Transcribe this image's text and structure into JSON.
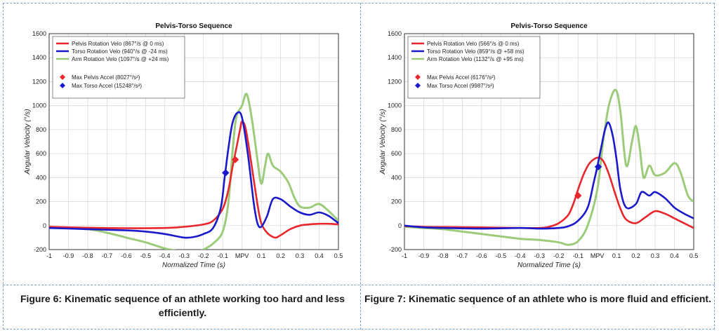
{
  "captions": {
    "left": "Figure 6: Kinematic sequence of an athlete working too hard and less efficiently.",
    "right": "Figure 7: Kinematic sequence of an athlete who is more fluid and efficient."
  },
  "colors": {
    "pelvis": "#e8262b",
    "torso": "#1a1acc",
    "arm": "#9ccc7a"
  },
  "chart_data": [
    {
      "type": "line",
      "title": "Pelvis-Torso Sequence",
      "xlabel": "Normalized Time (s)",
      "ylabel": "Angular Velocity (°/s)",
      "xlim": [
        -1,
        0.5
      ],
      "ylim": [
        -200,
        1600
      ],
      "xticks": [
        "-1",
        "-0.9",
        "-0.8",
        "-0.7",
        "-0.6",
        "-0.5",
        "-0.4",
        "-0.3",
        "-0.2",
        "-0.1",
        "MPV",
        "0.1",
        "0.2",
        "0.3",
        "0.4",
        "0.5"
      ],
      "yticks": [
        "-200",
        "0",
        "200",
        "400",
        "600",
        "800",
        "1000",
        "1200",
        "1400",
        "1600"
      ],
      "grid": true,
      "legend_position": "top-left",
      "series": [
        {
          "name": "Pelvis Rotation Velo",
          "legend_label": "Pelvis Rotation Velo  (867°/s @ 0 ms)",
          "color_key": "pelvis",
          "points": [
            [
              -1,
              -10
            ],
            [
              -0.8,
              -18
            ],
            [
              -0.6,
              -22
            ],
            [
              -0.4,
              -20
            ],
            [
              -0.3,
              -10
            ],
            [
              -0.2,
              10
            ],
            [
              -0.15,
              40
            ],
            [
              -0.1,
              140
            ],
            [
              -0.07,
              300
            ],
            [
              -0.05,
              480
            ],
            [
              -0.03,
              640
            ],
            [
              -0.01,
              800
            ],
            [
              0,
              867
            ],
            [
              0.02,
              800
            ],
            [
              0.05,
              500
            ],
            [
              0.08,
              180
            ],
            [
              0.1,
              20
            ],
            [
              0.13,
              -60
            ],
            [
              0.17,
              -100
            ],
            [
              0.2,
              -80
            ],
            [
              0.25,
              -30
            ],
            [
              0.3,
              0
            ],
            [
              0.35,
              10
            ],
            [
              0.4,
              15
            ],
            [
              0.45,
              15
            ],
            [
              0.5,
              10
            ]
          ]
        },
        {
          "name": "Torso Rotation Velo",
          "legend_label": "Torso Rotation Velo  (940°/s @ -24 ms)",
          "color_key": "torso",
          "points": [
            [
              -1,
              -20
            ],
            [
              -0.8,
              -30
            ],
            [
              -0.6,
              -40
            ],
            [
              -0.5,
              -50
            ],
            [
              -0.4,
              -70
            ],
            [
              -0.3,
              -100
            ],
            [
              -0.25,
              -95
            ],
            [
              -0.2,
              -70
            ],
            [
              -0.15,
              -20
            ],
            [
              -0.11,
              150
            ],
            [
              -0.09,
              400
            ],
            [
              -0.07,
              650
            ],
            [
              -0.05,
              850
            ],
            [
              -0.024,
              940
            ],
            [
              0,
              900
            ],
            [
              0.03,
              600
            ],
            [
              0.06,
              200
            ],
            [
              0.08,
              20
            ],
            [
              0.1,
              -10
            ],
            [
              0.13,
              80
            ],
            [
              0.16,
              220
            ],
            [
              0.2,
              220
            ],
            [
              0.25,
              160
            ],
            [
              0.3,
              110
            ],
            [
              0.35,
              90
            ],
            [
              0.4,
              110
            ],
            [
              0.45,
              80
            ],
            [
              0.5,
              20
            ]
          ]
        },
        {
          "name": "Arm Rotation Velo",
          "legend_label": "Arm Rotation Velo  (1097°/s @ +24 ms)",
          "color_key": "arm",
          "points": [
            [
              -1,
              -10
            ],
            [
              -0.8,
              -30
            ],
            [
              -0.7,
              -60
            ],
            [
              -0.6,
              -100
            ],
            [
              -0.5,
              -140
            ],
            [
              -0.4,
              -190
            ],
            [
              -0.3,
              -220
            ],
            [
              -0.25,
              -230
            ],
            [
              -0.2,
              -200
            ],
            [
              -0.15,
              -150
            ],
            [
              -0.1,
              -50
            ],
            [
              -0.07,
              200
            ],
            [
              -0.05,
              600
            ],
            [
              -0.03,
              900
            ],
            [
              0,
              1000
            ],
            [
              0.024,
              1097
            ],
            [
              0.05,
              900
            ],
            [
              0.08,
              550
            ],
            [
              0.1,
              350
            ],
            [
              0.12,
              500
            ],
            [
              0.135,
              600
            ],
            [
              0.16,
              500
            ],
            [
              0.2,
              450
            ],
            [
              0.24,
              360
            ],
            [
              0.27,
              240
            ],
            [
              0.3,
              160
            ],
            [
              0.35,
              150
            ],
            [
              0.4,
              180
            ],
            [
              0.45,
              120
            ],
            [
              0.5,
              40
            ]
          ]
        }
      ],
      "markers": [
        {
          "name": "Max Pelvis Accel",
          "legend_label": "Max Pelvis Accel  (8027°/s²)",
          "color_key": "pelvis",
          "x": -0.035,
          "y": 550
        },
        {
          "name": "Max Torso Accel",
          "legend_label": "Max Torso Accel  (15248°/s²)",
          "color_key": "torso",
          "x": -0.085,
          "y": 440
        }
      ]
    },
    {
      "type": "line",
      "title": "Pelvis-Torso Sequence",
      "xlabel": "Normalized Time (s)",
      "ylabel": "Angular Velocity (°/s)",
      "xlim": [
        -1,
        0.5
      ],
      "ylim": [
        -200,
        1600
      ],
      "xticks": [
        "-1",
        "-0.9",
        "-0.8",
        "-0.7",
        "-0.6",
        "-0.5",
        "-0.4",
        "-0.3",
        "-0.2",
        "-0.1",
        "MPV",
        "0.1",
        "0.2",
        "0.3",
        "0.4",
        "0.5"
      ],
      "yticks": [
        "-200",
        "0",
        "200",
        "400",
        "600",
        "800",
        "1000",
        "1200",
        "1400",
        "1600"
      ],
      "grid": true,
      "legend_position": "top-left",
      "series": [
        {
          "name": "Pelvis Rotation Velo",
          "legend_label": "Pelvis Rotation Velo  (566°/s @ 0 ms)",
          "color_key": "pelvis",
          "points": [
            [
              -1,
              -5
            ],
            [
              -0.9,
              -10
            ],
            [
              -0.8,
              -12
            ],
            [
              -0.6,
              -15
            ],
            [
              -0.4,
              -20
            ],
            [
              -0.3,
              -20
            ],
            [
              -0.25,
              -10
            ],
            [
              -0.2,
              20
            ],
            [
              -0.15,
              90
            ],
            [
              -0.12,
              200
            ],
            [
              -0.1,
              300
            ],
            [
              -0.07,
              430
            ],
            [
              -0.04,
              520
            ],
            [
              0,
              566
            ],
            [
              0.03,
              540
            ],
            [
              0.06,
              430
            ],
            [
              0.09,
              280
            ],
            [
              0.12,
              140
            ],
            [
              0.15,
              50
            ],
            [
              0.2,
              20
            ],
            [
              0.25,
              70
            ],
            [
              0.3,
              120
            ],
            [
              0.35,
              100
            ],
            [
              0.4,
              60
            ],
            [
              0.45,
              20
            ],
            [
              0.5,
              -20
            ]
          ]
        },
        {
          "name": "Torso Rotation Velo",
          "legend_label": "Torso Rotation Velo  (859°/s @ +58 ms)",
          "color_key": "torso",
          "points": [
            [
              -1,
              0
            ],
            [
              -0.9,
              -15
            ],
            [
              -0.8,
              -20
            ],
            [
              -0.6,
              -25
            ],
            [
              -0.4,
              -20
            ],
            [
              -0.3,
              -25
            ],
            [
              -0.2,
              -20
            ],
            [
              -0.15,
              -5
            ],
            [
              -0.1,
              40
            ],
            [
              -0.05,
              150
            ],
            [
              -0.02,
              350
            ],
            [
              0,
              490
            ],
            [
              0.02,
              650
            ],
            [
              0.04,
              800
            ],
            [
              0.058,
              859
            ],
            [
              0.08,
              750
            ],
            [
              0.1,
              550
            ],
            [
              0.12,
              300
            ],
            [
              0.15,
              150
            ],
            [
              0.2,
              180
            ],
            [
              0.23,
              280
            ],
            [
              0.27,
              250
            ],
            [
              0.3,
              280
            ],
            [
              0.35,
              230
            ],
            [
              0.4,
              150
            ],
            [
              0.45,
              100
            ],
            [
              0.5,
              60
            ]
          ]
        },
        {
          "name": "Arm Rotation Velo",
          "legend_label": "Arm Rotation Velo  (1132°/s @ +95 ms)",
          "color_key": "arm",
          "points": [
            [
              -1,
              -10
            ],
            [
              -0.9,
              -20
            ],
            [
              -0.8,
              -30
            ],
            [
              -0.7,
              -50
            ],
            [
              -0.6,
              -70
            ],
            [
              -0.5,
              -90
            ],
            [
              -0.4,
              -110
            ],
            [
              -0.3,
              -120
            ],
            [
              -0.2,
              -140
            ],
            [
              -0.15,
              -160
            ],
            [
              -0.1,
              -130
            ],
            [
              -0.05,
              0
            ],
            [
              0,
              300
            ],
            [
              0.03,
              700
            ],
            [
              0.06,
              1000
            ],
            [
              0.095,
              1132
            ],
            [
              0.12,
              950
            ],
            [
              0.15,
              500
            ],
            [
              0.18,
              700
            ],
            [
              0.2,
              830
            ],
            [
              0.22,
              650
            ],
            [
              0.24,
              400
            ],
            [
              0.27,
              500
            ],
            [
              0.3,
              420
            ],
            [
              0.35,
              440
            ],
            [
              0.4,
              520
            ],
            [
              0.43,
              450
            ],
            [
              0.47,
              250
            ],
            [
              0.5,
              200
            ]
          ]
        }
      ],
      "markers": [
        {
          "name": "Max Pelvis Accel",
          "legend_label": "Max Pelvis Accel  (6176°/s²)",
          "color_key": "pelvis",
          "x": -0.1,
          "y": 250
        },
        {
          "name": "Max Torso Accel",
          "legend_label": "Max Torso Accel  (9987°/s²)",
          "color_key": "torso",
          "x": 0.005,
          "y": 490
        }
      ]
    }
  ]
}
